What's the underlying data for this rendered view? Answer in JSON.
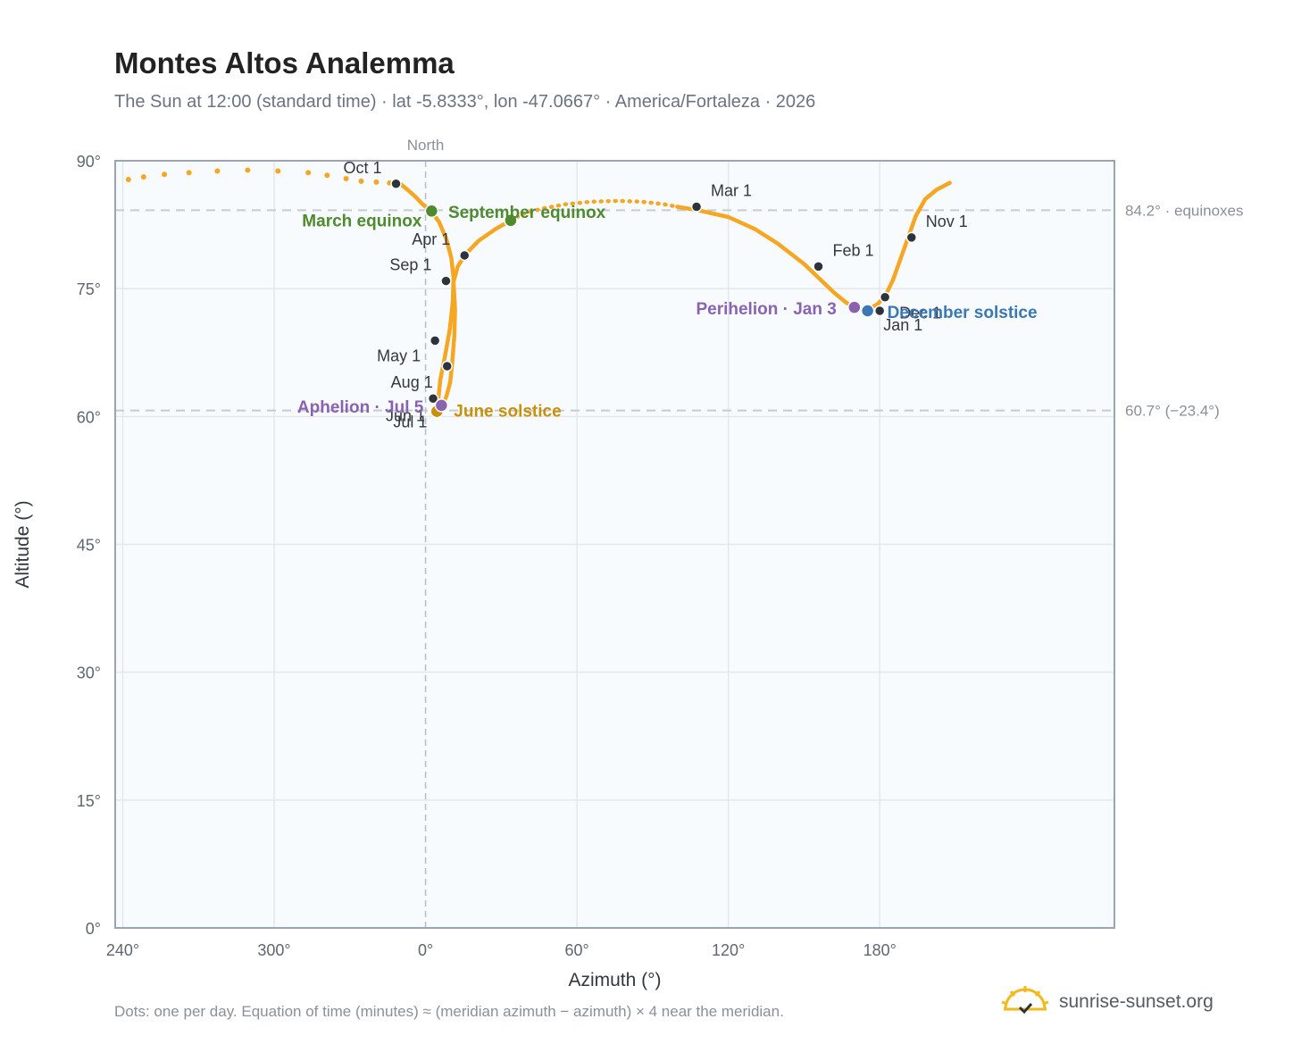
{
  "header": {
    "title": "Montes Altos Analemma",
    "subtitle": "The Sun at 12:00 (standard time) · lat -5.8333°, lon -47.0667° · America/Fortaleza · 2026"
  },
  "footer": {
    "note": "Dots: one per day. Equation of time (minutes) ≈ (meridian azimuth − azimuth) × 4 near the meridian.",
    "brand": "sunrise-sunset.org"
  },
  "colors": {
    "curve": "#f5a623",
    "month_marker": "#2d333b",
    "equinox": "#4e8a2e",
    "june_solstice": "#c9900c",
    "december_solstice": "#3a78b5",
    "perihelion_aphelion": "#8a63b0",
    "reference_line": "#c4cbd4",
    "plot_background": "#f8fbfd",
    "grid": "#e3e8ee"
  },
  "chart_data": {
    "type": "scatter",
    "title": "Montes Altos Analemma",
    "subtitle": "The Sun at 12:00 (standard time) · lat -5.8333°, lon -47.0667° · America/Fortaleza · 2026",
    "xlabel": "Azimuth (°)",
    "ylabel": "Altitude (°)",
    "x_unit_note": "azimuth; x values are signed offsets from North (0°), negative = west of north",
    "xlim": [
      -82,
      182
    ],
    "ylim": [
      0,
      90
    ],
    "x_ticks": [
      {
        "value": -80,
        "label": "240°"
      },
      {
        "value": -40,
        "label": "300°"
      },
      {
        "value": 0,
        "label": "0°"
      },
      {
        "value": 40,
        "label": "60°"
      },
      {
        "value": 80,
        "label": "120°"
      },
      {
        "value": 120,
        "label": "180°"
      }
    ],
    "y_ticks": [
      {
        "value": 0,
        "label": "0°"
      },
      {
        "value": 15,
        "label": "15°"
      },
      {
        "value": 30,
        "label": "30°"
      },
      {
        "value": 45,
        "label": "45°"
      },
      {
        "value": 60,
        "label": "60°"
      },
      {
        "value": 75,
        "label": "75°"
      },
      {
        "value": 90,
        "label": "90°"
      }
    ],
    "meridian": {
      "x": 0,
      "label": "North"
    },
    "reference_lines": [
      {
        "y": 84.2,
        "label": "84.2° · equinoxes"
      },
      {
        "y": 60.7,
        "label": "60.7° (−23.4°)"
      }
    ],
    "curve": [
      [
        -6.7,
        87.3
      ],
      [
        -4.5,
        86.5
      ],
      [
        -2.5,
        85.7
      ],
      [
        -0.8,
        84.9
      ],
      [
        1.5,
        84.1
      ],
      [
        3.6,
        82.8
      ],
      [
        5.5,
        80.8
      ],
      [
        6.8,
        78.6
      ],
      [
        7.4,
        76.3
      ],
      [
        7.2,
        73.5
      ],
      [
        6.4,
        70.2
      ],
      [
        5.1,
        67.0
      ],
      [
        3.9,
        64.3
      ],
      [
        3.4,
        62.2
      ],
      [
        3.5,
        61.0
      ],
      [
        3.8,
        60.7
      ]
    ],
    "curve_2": [
      [
        3.8,
        60.7
      ],
      [
        4.5,
        61.2
      ],
      [
        5.6,
        62.5
      ],
      [
        6.5,
        64.0
      ],
      [
        7.0,
        66.0
      ],
      [
        7.6,
        69.5
      ],
      [
        7.8,
        72.5
      ],
      [
        7.4,
        75.8
      ],
      [
        8.5,
        77.6
      ],
      [
        10.5,
        79.0
      ],
      [
        14.0,
        80.6
      ],
      [
        18.5,
        82.0
      ],
      [
        22.5,
        83.0
      ]
    ],
    "curve_2b": [
      [
        22.5,
        83.0
      ],
      [
        26.0,
        83.8
      ],
      [
        31.0,
        84.4
      ],
      [
        37.0,
        84.9
      ],
      [
        44.0,
        85.2
      ],
      [
        51.0,
        85.3
      ],
      [
        57.0,
        85.2
      ],
      [
        63.0,
        84.9
      ],
      [
        66.5,
        84.6
      ]
    ],
    "curve_3": [
      [
        66.5,
        84.6
      ],
      [
        72.0,
        84.2
      ],
      [
        80.0,
        83.4
      ],
      [
        87.0,
        82.0
      ],
      [
        93.0,
        80.3
      ],
      [
        100.0,
        77.9
      ],
      [
        104.0,
        76.2
      ],
      [
        108.0,
        74.5
      ],
      [
        111.0,
        73.4
      ],
      [
        113.5,
        72.7
      ],
      [
        116.8,
        72.5
      ],
      [
        119.5,
        73.2
      ],
      [
        121.5,
        74.2
      ],
      [
        123.5,
        76.0
      ],
      [
        125.5,
        78.5
      ],
      [
        127.5,
        81.0
      ],
      [
        129.5,
        83.5
      ],
      [
        132.0,
        85.5
      ],
      [
        135.0,
        86.6
      ],
      [
        138.5,
        87.4
      ]
    ],
    "sparse_dots": [
      [
        -78.5,
        87.8
      ],
      [
        -74.5,
        88.1
      ],
      [
        -69.0,
        88.4
      ],
      [
        -62.5,
        88.6
      ],
      [
        -55.0,
        88.8
      ],
      [
        -47.0,
        88.9
      ],
      [
        -39.0,
        88.8
      ],
      [
        -31.0,
        88.6
      ],
      [
        -26.0,
        88.3
      ],
      [
        -21.0,
        87.9
      ],
      [
        -17.0,
        87.6
      ],
      [
        -13.0,
        87.5
      ],
      [
        -9.5,
        87.4
      ]
    ],
    "month_markers": [
      {
        "label": "Jan 1",
        "x": 120.0,
        "y": 72.4
      },
      {
        "label": "Feb 1",
        "x": 103.8,
        "y": 77.6
      },
      {
        "label": "Mar 1",
        "x": 71.6,
        "y": 84.6
      },
      {
        "label": "Apr 1",
        "x": 10.3,
        "y": 78.9
      },
      {
        "label": "May 1",
        "x": 2.5,
        "y": 68.9
      },
      {
        "label": "Jun 1",
        "x": 2.0,
        "y": 62.1
      },
      {
        "label": "Jul 1",
        "x": 3.5,
        "y": 60.7
      },
      {
        "label": "Aug 1",
        "x": 5.7,
        "y": 65.9
      },
      {
        "label": "Sep 1",
        "x": 5.4,
        "y": 75.9
      },
      {
        "label": "Oct 1",
        "x": -7.8,
        "y": 87.3
      },
      {
        "label": "Nov 1",
        "x": 128.4,
        "y": 81.0
      },
      {
        "label": "Dec 1",
        "x": 121.4,
        "y": 74.0
      }
    ],
    "events": [
      {
        "label": "March equinox",
        "x": 1.6,
        "y": 84.1,
        "color_key": "equinox"
      },
      {
        "label": "September equinox",
        "x": 22.5,
        "y": 83.0,
        "color_key": "equinox"
      },
      {
        "label": "June solstice",
        "x": 3.0,
        "y": 60.6,
        "color_key": "june_solstice"
      },
      {
        "label": "December solstice",
        "x": 116.8,
        "y": 72.4,
        "color_key": "december_solstice"
      },
      {
        "label": "Perihelion · Jan 3",
        "x": 113.3,
        "y": 72.8,
        "color_key": "perihelion_aphelion"
      },
      {
        "label": "Aphelion · Jul 5",
        "x": 4.2,
        "y": 61.3,
        "color_key": "perihelion_aphelion"
      }
    ]
  }
}
